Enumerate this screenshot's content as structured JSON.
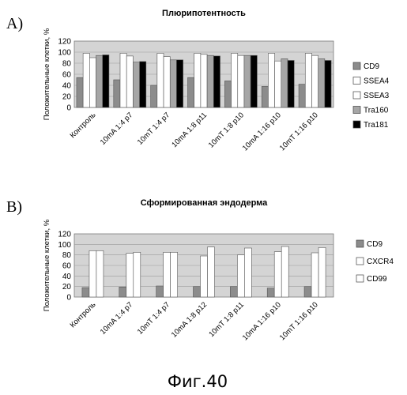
{
  "caption": "Фиг.40",
  "series_colors": {
    "CD9": "#8c8c8c",
    "SSEA4": "#ffffff",
    "SSEA3": "#ffffff",
    "Tra160": "#a6a6a6",
    "Tra181": "#000000",
    "CXCR4": "#ffffff",
    "CD99": "#ffffff"
  },
  "plot_background": "#d4d4d4",
  "chart_data": [
    {
      "panel_label": "A)",
      "type": "bar",
      "title": "Плюрипотентность",
      "ylabel": "Положительные клетки, %",
      "ylim": [
        0,
        120
      ],
      "yticks": [
        0,
        20,
        40,
        60,
        80,
        100,
        120
      ],
      "grid": true,
      "legend_position": "right",
      "categories": [
        "Контроль",
        "10mA 1:4 p7",
        "10mT 1:4 p7",
        "10mA 1:8 p11",
        "10mT 1:8 p10",
        "10mA 1:16 p10",
        "10mT 1:16 p10"
      ],
      "series": [
        {
          "name": "CD9",
          "values": [
            54,
            50,
            40,
            54,
            48,
            38,
            42
          ]
        },
        {
          "name": "SSEA4",
          "values": [
            98,
            98,
            98,
            98,
            98,
            98,
            98
          ]
        },
        {
          "name": "SSEA3",
          "values": [
            90,
            93,
            92,
            96,
            94,
            84,
            94
          ]
        },
        {
          "name": "Tra160",
          "values": [
            94,
            82,
            86,
            94,
            94,
            88,
            88
          ]
        },
        {
          "name": "Tra181",
          "values": [
            95,
            83,
            86,
            93,
            94,
            85,
            85
          ]
        }
      ]
    },
    {
      "panel_label": "B)",
      "type": "bar",
      "title": "Сформированная эндодерма",
      "ylabel": "Положительные клетки, %",
      "ylim": [
        0,
        120
      ],
      "yticks": [
        0,
        20,
        40,
        60,
        80,
        100,
        120
      ],
      "grid": true,
      "legend_position": "right",
      "categories": [
        "Контроль",
        "10mA 1:4 p7",
        "10mT 1:4 p7",
        "10mA 1:8 p12",
        "10mT 1:8 p11",
        "10mA 1:16 p10",
        "10mT 1:16 p10"
      ],
      "series": [
        {
          "name": "CD9",
          "values": [
            18,
            19,
            21,
            20,
            20,
            17,
            20
          ]
        },
        {
          "name": "CXCR4",
          "values": [
            88,
            83,
            85,
            78,
            80,
            86,
            84
          ]
        },
        {
          "name": "CD99",
          "values": [
            88,
            85,
            85,
            95,
            93,
            96,
            94
          ]
        }
      ]
    }
  ]
}
